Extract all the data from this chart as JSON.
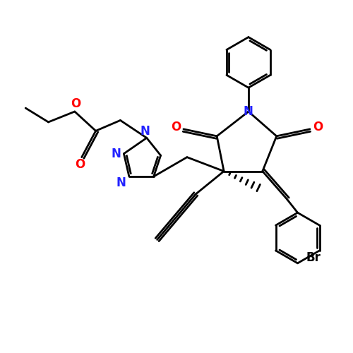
{
  "bg": "#ffffff",
  "bc": "#000000",
  "nc": "#2222ff",
  "oc": "#ff0000",
  "lw": 2.0,
  "xlim": [
    0,
    10
  ],
  "ylim": [
    0,
    10
  ]
}
